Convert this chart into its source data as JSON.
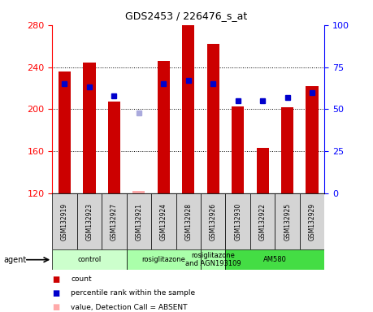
{
  "title": "GDS2453 / 226476_s_at",
  "samples": [
    "GSM132919",
    "GSM132923",
    "GSM132927",
    "GSM132921",
    "GSM132924",
    "GSM132928",
    "GSM132926",
    "GSM132930",
    "GSM132922",
    "GSM132925",
    "GSM132929"
  ],
  "bar_values": [
    236,
    244,
    207,
    122,
    246,
    280,
    262,
    203,
    163,
    202,
    222
  ],
  "bar_absent": [
    false,
    false,
    false,
    true,
    false,
    false,
    false,
    false,
    false,
    false,
    false
  ],
  "rank_values": [
    65,
    63,
    58,
    48,
    65,
    67,
    65,
    55,
    55,
    57,
    60
  ],
  "rank_absent": [
    false,
    false,
    false,
    true,
    false,
    false,
    false,
    false,
    false,
    false,
    false
  ],
  "ymin": 120,
  "ymax": 280,
  "y_ticks_left": [
    120,
    160,
    200,
    240,
    280
  ],
  "y_ticks_right": [
    0,
    25,
    50,
    75,
    100
  ],
  "groups": [
    {
      "label": "control",
      "start": 0,
      "end": 3,
      "color": "#ccffcc"
    },
    {
      "label": "rosiglitazone",
      "start": 3,
      "end": 6,
      "color": "#aaffaa"
    },
    {
      "label": "rosiglitazone\nand AGN193109",
      "start": 6,
      "end": 7,
      "color": "#aaffaa"
    },
    {
      "label": "AM580",
      "start": 7,
      "end": 11,
      "color": "#44dd44"
    }
  ],
  "bar_color": "#cc0000",
  "bar_absent_color": "#ffaaaa",
  "rank_color": "#0000cc",
  "rank_absent_color": "#aaaadd",
  "sample_box_color": "#d4d4d4",
  "plot_bg": "#ffffff"
}
